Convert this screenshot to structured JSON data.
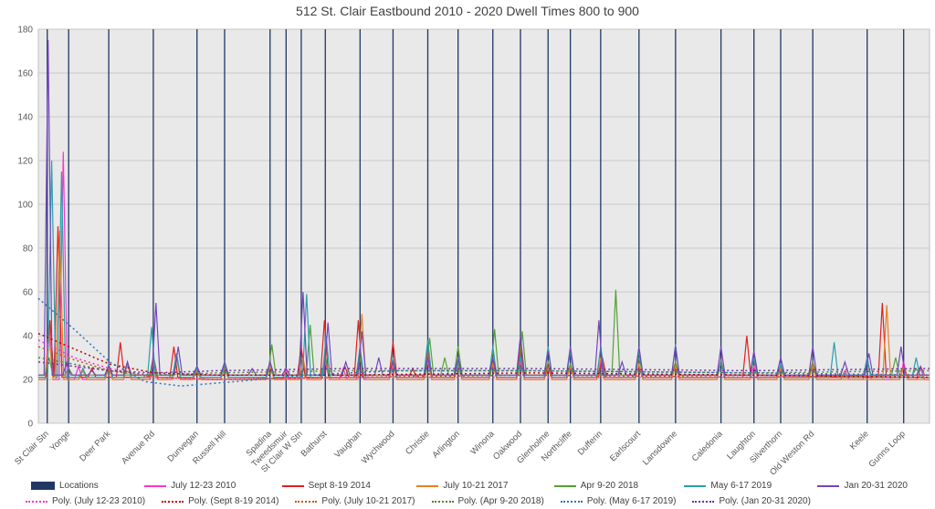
{
  "chart_data": {
    "type": "line",
    "title": "512 St. Clair Eastbound 2010 - 2020 Dwell Times 800 to 900",
    "xlabel": "",
    "ylabel": "",
    "ylim": [
      0,
      180
    ],
    "yticks": [
      0,
      20,
      40,
      60,
      80,
      100,
      120,
      140,
      160,
      180
    ],
    "grid": true,
    "legend_position": "bottom",
    "locations": {
      "name": "Locations",
      "color": "#1f3864"
    },
    "stations": [
      {
        "name": "St Clair Stn",
        "x": 0.01
      },
      {
        "name": "Yonge",
        "x": 0.034
      },
      {
        "name": "Deer Park",
        "x": 0.079
      },
      {
        "name": "Avenue Rd",
        "x": 0.129
      },
      {
        "name": "Dunvegan",
        "x": 0.178
      },
      {
        "name": "Russell Hill",
        "x": 0.209
      },
      {
        "name": "Spadina",
        "x": 0.26
      },
      {
        "name": "Tweedsmuir",
        "x": 0.278
      },
      {
        "name": "St Clair W Stn",
        "x": 0.295
      },
      {
        "name": "Bathurst",
        "x": 0.322
      },
      {
        "name": "Vaughan",
        "x": 0.361
      },
      {
        "name": "Wychwood",
        "x": 0.398
      },
      {
        "name": "Christie",
        "x": 0.437
      },
      {
        "name": "Arlington",
        "x": 0.471
      },
      {
        "name": "Winona",
        "x": 0.51
      },
      {
        "name": "Oakwood",
        "x": 0.541
      },
      {
        "name": "Glenholme",
        "x": 0.572
      },
      {
        "name": "Northcliffe",
        "x": 0.597
      },
      {
        "name": "Dufferin",
        "x": 0.631
      },
      {
        "name": "Earlscourt",
        "x": 0.674
      },
      {
        "name": "Lansdowne",
        "x": 0.715
      },
      {
        "name": "Caledonia",
        "x": 0.766
      },
      {
        "name": "Laughton",
        "x": 0.803
      },
      {
        "name": "Silverthorn",
        "x": 0.833
      },
      {
        "name": "Old Weston Rd",
        "x": 0.869
      },
      {
        "name": "Keele",
        "x": 0.93
      },
      {
        "name": "Gunns Loop",
        "x": 0.971
      }
    ],
    "series": [
      {
        "name": "July 12-23 2010",
        "color": "#ff33cc",
        "base": 20,
        "spikes": [
          [
            0.012,
            45
          ],
          [
            0.028,
            124
          ],
          [
            0.045,
            26
          ],
          [
            0.079,
            25
          ],
          [
            0.1,
            27
          ],
          [
            0.13,
            29
          ],
          [
            0.155,
            32
          ],
          [
            0.178,
            24
          ],
          [
            0.209,
            25
          ],
          [
            0.26,
            27
          ],
          [
            0.278,
            24
          ],
          [
            0.297,
            29
          ],
          [
            0.322,
            28
          ],
          [
            0.342,
            25
          ],
          [
            0.361,
            30
          ],
          [
            0.398,
            26
          ],
          [
            0.437,
            28
          ],
          [
            0.471,
            26
          ],
          [
            0.51,
            27
          ],
          [
            0.541,
            28
          ],
          [
            0.572,
            25
          ],
          [
            0.597,
            26
          ],
          [
            0.631,
            28
          ],
          [
            0.674,
            26
          ],
          [
            0.715,
            27
          ],
          [
            0.766,
            28
          ],
          [
            0.803,
            26
          ],
          [
            0.833,
            25
          ],
          [
            0.869,
            27
          ],
          [
            0.905,
            24
          ],
          [
            0.93,
            30
          ],
          [
            0.971,
            28
          ],
          [
            0.99,
            25
          ]
        ]
      },
      {
        "name": "Sept 8-19 2014",
        "color": "#e02020",
        "base": 21,
        "spikes": [
          [
            0.013,
            47
          ],
          [
            0.022,
            90
          ],
          [
            0.06,
            25
          ],
          [
            0.092,
            37
          ],
          [
            0.129,
            30
          ],
          [
            0.152,
            35
          ],
          [
            0.178,
            25
          ],
          [
            0.209,
            26
          ],
          [
            0.26,
            25
          ],
          [
            0.295,
            35
          ],
          [
            0.321,
            47
          ],
          [
            0.344,
            26
          ],
          [
            0.359,
            47
          ],
          [
            0.398,
            37
          ],
          [
            0.42,
            25
          ],
          [
            0.437,
            35
          ],
          [
            0.471,
            28
          ],
          [
            0.51,
            28
          ],
          [
            0.541,
            35
          ],
          [
            0.572,
            26
          ],
          [
            0.597,
            25
          ],
          [
            0.633,
            30
          ],
          [
            0.674,
            26
          ],
          [
            0.715,
            27
          ],
          [
            0.766,
            29
          ],
          [
            0.795,
            40
          ],
          [
            0.833,
            26
          ],
          [
            0.869,
            28
          ],
          [
            0.947,
            55
          ],
          [
            0.971,
            25
          ]
        ]
      },
      {
        "name": "July 10-21 2017",
        "color": "#e88024",
        "base": 20,
        "spikes": [
          [
            0.012,
            40
          ],
          [
            0.024,
            88
          ],
          [
            0.05,
            24
          ],
          [
            0.079,
            25
          ],
          [
            0.1,
            27
          ],
          [
            0.129,
            28
          ],
          [
            0.155,
            30
          ],
          [
            0.178,
            24
          ],
          [
            0.209,
            25
          ],
          [
            0.26,
            26
          ],
          [
            0.297,
            30
          ],
          [
            0.322,
            30
          ],
          [
            0.363,
            50
          ],
          [
            0.398,
            27
          ],
          [
            0.437,
            30
          ],
          [
            0.471,
            26
          ],
          [
            0.51,
            27
          ],
          [
            0.541,
            30
          ],
          [
            0.572,
            25
          ],
          [
            0.597,
            26
          ],
          [
            0.631,
            30
          ],
          [
            0.674,
            27
          ],
          [
            0.715,
            26
          ],
          [
            0.766,
            28
          ],
          [
            0.803,
            30
          ],
          [
            0.833,
            25
          ],
          [
            0.869,
            26
          ],
          [
            0.952,
            54
          ],
          [
            0.971,
            26
          ]
        ]
      },
      {
        "name": "Apr 9-20 2018",
        "color": "#56a036",
        "base": 22,
        "spikes": [
          [
            0.012,
            30
          ],
          [
            0.034,
            25
          ],
          [
            0.079,
            26
          ],
          [
            0.129,
            28
          ],
          [
            0.155,
            30
          ],
          [
            0.209,
            25
          ],
          [
            0.262,
            36
          ],
          [
            0.305,
            45
          ],
          [
            0.322,
            30
          ],
          [
            0.361,
            30
          ],
          [
            0.398,
            28
          ],
          [
            0.439,
            39
          ],
          [
            0.456,
            30
          ],
          [
            0.471,
            35
          ],
          [
            0.512,
            43
          ],
          [
            0.543,
            42
          ],
          [
            0.572,
            28
          ],
          [
            0.597,
            27
          ],
          [
            0.648,
            61
          ],
          [
            0.674,
            30
          ],
          [
            0.715,
            28
          ],
          [
            0.766,
            28
          ],
          [
            0.803,
            30
          ],
          [
            0.833,
            26
          ],
          [
            0.869,
            28
          ],
          [
            0.93,
            28
          ],
          [
            0.962,
            30
          ],
          [
            0.985,
            25
          ]
        ]
      },
      {
        "name": "May 6-17 2019",
        "color": "#2b9fad",
        "base": 21,
        "spikes": [
          [
            0.015,
            120
          ],
          [
            0.026,
            115
          ],
          [
            0.05,
            25
          ],
          [
            0.079,
            27
          ],
          [
            0.1,
            28
          ],
          [
            0.127,
            44
          ],
          [
            0.155,
            32
          ],
          [
            0.178,
            25
          ],
          [
            0.209,
            27
          ],
          [
            0.26,
            28
          ],
          [
            0.301,
            59
          ],
          [
            0.323,
            40
          ],
          [
            0.361,
            35
          ],
          [
            0.398,
            30
          ],
          [
            0.437,
            38
          ],
          [
            0.471,
            28
          ],
          [
            0.51,
            35
          ],
          [
            0.541,
            30
          ],
          [
            0.572,
            35
          ],
          [
            0.597,
            33
          ],
          [
            0.631,
            35
          ],
          [
            0.674,
            33
          ],
          [
            0.715,
            36
          ],
          [
            0.766,
            28
          ],
          [
            0.803,
            30
          ],
          [
            0.833,
            27
          ],
          [
            0.893,
            37
          ],
          [
            0.93,
            30
          ],
          [
            0.985,
            30
          ]
        ]
      },
      {
        "name": "Jan 20-31 2020",
        "color": "#7445be",
        "base": 22,
        "spikes": [
          [
            0.011,
            175
          ],
          [
            0.032,
            28
          ],
          [
            0.06,
            24
          ],
          [
            0.079,
            26
          ],
          [
            0.1,
            28
          ],
          [
            0.132,
            55
          ],
          [
            0.157,
            35
          ],
          [
            0.178,
            26
          ],
          [
            0.209,
            28
          ],
          [
            0.24,
            25
          ],
          [
            0.26,
            28
          ],
          [
            0.278,
            25
          ],
          [
            0.297,
            60
          ],
          [
            0.325,
            46
          ],
          [
            0.345,
            28
          ],
          [
            0.363,
            42
          ],
          [
            0.382,
            30
          ],
          [
            0.398,
            28
          ],
          [
            0.437,
            30
          ],
          [
            0.471,
            30
          ],
          [
            0.51,
            30
          ],
          [
            0.541,
            40
          ],
          [
            0.572,
            33
          ],
          [
            0.597,
            35
          ],
          [
            0.629,
            47
          ],
          [
            0.655,
            28
          ],
          [
            0.674,
            35
          ],
          [
            0.715,
            35
          ],
          [
            0.766,
            35
          ],
          [
            0.803,
            33
          ],
          [
            0.833,
            30
          ],
          [
            0.869,
            35
          ],
          [
            0.905,
            28
          ],
          [
            0.932,
            32
          ],
          [
            0.968,
            35
          ],
          [
            0.99,
            26
          ]
        ]
      }
    ],
    "poly_series": [
      {
        "name": "Poly. (July 12-23 2010)",
        "color": "#ff33cc",
        "points": [
          [
            0,
            38
          ],
          [
            0.04,
            30
          ],
          [
            0.08,
            25
          ],
          [
            0.13,
            21
          ],
          [
            0.2,
            20
          ],
          [
            0.35,
            21
          ],
          [
            0.55,
            21
          ],
          [
            0.8,
            21
          ],
          [
            1,
            22
          ]
        ]
      },
      {
        "name": "Poly. (Sept 8-19 2014)",
        "color": "#c00000",
        "points": [
          [
            0,
            41
          ],
          [
            0.04,
            34
          ],
          [
            0.08,
            27
          ],
          [
            0.13,
            23
          ],
          [
            0.2,
            22
          ],
          [
            0.35,
            22
          ],
          [
            0.55,
            23
          ],
          [
            0.8,
            22
          ],
          [
            1,
            21
          ]
        ]
      },
      {
        "name": "Poly. (July 10-21 2017)",
        "color": "#c55a11",
        "points": [
          [
            0,
            35
          ],
          [
            0.04,
            29
          ],
          [
            0.08,
            24
          ],
          [
            0.13,
            21
          ],
          [
            0.2,
            20
          ],
          [
            0.35,
            21
          ],
          [
            0.55,
            22
          ],
          [
            0.8,
            21
          ],
          [
            1,
            22
          ]
        ]
      },
      {
        "name": "Poly. (Apr 9-20 2018)",
        "color": "#538135",
        "points": [
          [
            0,
            30
          ],
          [
            0.04,
            27
          ],
          [
            0.08,
            24
          ],
          [
            0.13,
            22
          ],
          [
            0.2,
            23
          ],
          [
            0.35,
            24
          ],
          [
            0.55,
            24
          ],
          [
            0.8,
            23
          ],
          [
            1,
            24
          ]
        ]
      },
      {
        "name": "Poly. (May 6-17 2019)",
        "color": "#2e75b6",
        "points": [
          [
            0,
            57
          ],
          [
            0.04,
            43
          ],
          [
            0.08,
            28
          ],
          [
            0.12,
            19
          ],
          [
            0.16,
            17
          ],
          [
            0.22,
            19
          ],
          [
            0.3,
            22
          ],
          [
            0.4,
            24
          ],
          [
            0.55,
            24
          ],
          [
            0.8,
            23
          ],
          [
            1,
            22
          ]
        ]
      },
      {
        "name": "Poly. (Jan 20-31 2020)",
        "color": "#7030a0",
        "points": [
          [
            0,
            28
          ],
          [
            0.04,
            26
          ],
          [
            0.08,
            24
          ],
          [
            0.13,
            23
          ],
          [
            0.2,
            24
          ],
          [
            0.35,
            25
          ],
          [
            0.55,
            25
          ],
          [
            0.8,
            24
          ],
          [
            1,
            25
          ]
        ]
      }
    ],
    "legend": {
      "row1": [
        {
          "label": "Locations",
          "color": "#1f3864",
          "style": "bar"
        },
        {
          "label": "July 12-23 2010",
          "color": "#ff33cc",
          "style": "solid"
        },
        {
          "label": "Sept 8-19 2014",
          "color": "#e02020",
          "style": "solid"
        },
        {
          "label": "July 10-21 2017",
          "color": "#e88024",
          "style": "solid"
        },
        {
          "label": "Apr 9-20 2018",
          "color": "#56a036",
          "style": "solid"
        },
        {
          "label": "May 6-17 2019",
          "color": "#2b9fad",
          "style": "solid"
        },
        {
          "label": "Jan 20-31 2020",
          "color": "#7445be",
          "style": "solid"
        }
      ],
      "row2": [
        {
          "label": "Poly. (July 12-23 2010)",
          "color": "#ff33cc",
          "style": "dotted"
        },
        {
          "label": "Poly. (Sept 8-19 2014)",
          "color": "#c00000",
          "style": "dotted"
        },
        {
          "label": "Poly. (July 10-21 2017)",
          "color": "#c55a11",
          "style": "dotted"
        },
        {
          "label": "Poly. (Apr 9-20 2018)",
          "color": "#538135",
          "style": "dotted"
        },
        {
          "label": "Poly. (May 6-17 2019)",
          "color": "#2e75b6",
          "style": "dotted"
        },
        {
          "label": "Poly. (Jan 20-31 2020)",
          "color": "#7030a0",
          "style": "dotted"
        }
      ]
    }
  }
}
